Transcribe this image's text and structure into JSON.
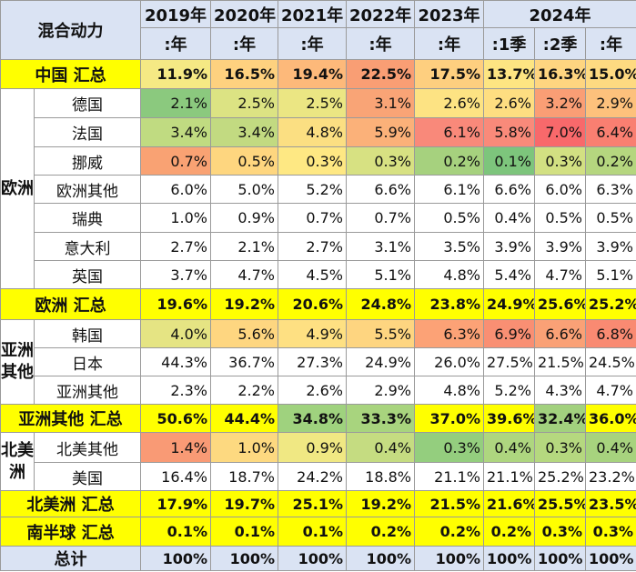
{
  "header": {
    "corner": "混合动力",
    "years": [
      {
        "label": "2019年",
        "span": 1
      },
      {
        "label": "2020年",
        "span": 1
      },
      {
        "label": "2021年",
        "span": 1
      },
      {
        "label": "2022年",
        "span": 1
      },
      {
        "label": "2023年",
        "span": 1
      },
      {
        "label": "2024年",
        "span": 3
      }
    ],
    "periods": [
      ":年",
      ":年",
      ":年",
      ":年",
      ":年",
      ":1季",
      ":2季",
      ":年"
    ]
  },
  "rows": [
    {
      "type": "total",
      "label": "中国 汇总",
      "values": [
        "11.9%",
        "16.5%",
        "19.4%",
        "22.5%",
        "17.5%",
        "13.7%",
        "16.3%",
        "15.0%"
      ],
      "colors": [
        "#f5e984",
        "#fed17f",
        "#fdb97a",
        "#f99e74",
        "#fecf7f",
        "#fde582",
        "#fed580",
        "#feda81"
      ]
    },
    {
      "type": "region-start",
      "region": "欧洲",
      "span": 7,
      "label": "德国",
      "values": [
        "2.1%",
        "2.5%",
        "2.5%",
        "3.1%",
        "2.6%",
        "2.6%",
        "3.2%",
        "2.9%"
      ],
      "colors": [
        "#8bc97e",
        "#dce383",
        "#ebe683",
        "#f9a476",
        "#fde383",
        "#fede81",
        "#fa9e75",
        "#fdc17c"
      ]
    },
    {
      "type": "country",
      "label": "法国",
      "values": [
        "3.4%",
        "3.4%",
        "4.8%",
        "5.9%",
        "6.1%",
        "5.8%",
        "7.0%",
        "6.4%"
      ],
      "colors": [
        "#c0db81",
        "#c2da81",
        "#fbdf82",
        "#fbb179",
        "#f9897a",
        "#f98a7a",
        "#f8696b",
        "#f97f71"
      ]
    },
    {
      "type": "country",
      "label": "挪威",
      "values": [
        "0.7%",
        "0.5%",
        "0.3%",
        "0.3%",
        "0.2%",
        "0.1%",
        "0.3%",
        "0.2%"
      ],
      "colors": [
        "#f9a273",
        "#fed67f",
        "#fee883",
        "#d7e182",
        "#a6d17e",
        "#7dc57c",
        "#d2e082",
        "#b5d67f"
      ]
    },
    {
      "type": "country",
      "label": "欧洲其他",
      "values": [
        "6.0%",
        "5.0%",
        "5.2%",
        "6.6%",
        "6.1%",
        "6.6%",
        "6.0%",
        "6.3%"
      ]
    },
    {
      "type": "country",
      "label": "瑞典",
      "values": [
        "1.0%",
        "0.9%",
        "0.7%",
        "0.7%",
        "0.5%",
        "0.4%",
        "0.5%",
        "0.5%"
      ]
    },
    {
      "type": "country",
      "label": "意大利",
      "values": [
        "2.7%",
        "2.1%",
        "2.7%",
        "3.1%",
        "3.5%",
        "3.9%",
        "3.9%",
        "3.9%"
      ]
    },
    {
      "type": "country",
      "label": "英国",
      "values": [
        "3.7%",
        "4.7%",
        "4.5%",
        "5.1%",
        "4.8%",
        "5.4%",
        "4.7%",
        "5.1%"
      ]
    },
    {
      "type": "total",
      "label": "欧洲 汇总",
      "values": [
        "19.6%",
        "19.2%",
        "20.6%",
        "24.8%",
        "23.8%",
        "24.9%",
        "25.6%",
        "25.2%"
      ]
    },
    {
      "type": "region-start",
      "region": "亚洲其他",
      "span": 3,
      "label": "韩国",
      "values": [
        "4.0%",
        "5.6%",
        "4.9%",
        "5.5%",
        "6.3%",
        "6.9%",
        "6.6%",
        "6.8%"
      ],
      "colors": [
        "#e5e483",
        "#fed680",
        "#fee082",
        "#fed580",
        "#fca276",
        "#f98f73",
        "#faa176",
        "#f98a72"
      ]
    },
    {
      "type": "country",
      "label": "日本",
      "values": [
        "44.3%",
        "36.7%",
        "27.3%",
        "24.9%",
        "26.0%",
        "27.5%",
        "21.5%",
        "24.5%"
      ]
    },
    {
      "type": "country",
      "label": "亚洲其他",
      "values": [
        "2.3%",
        "2.2%",
        "2.6%",
        "2.9%",
        "4.8%",
        "5.2%",
        "4.3%",
        "4.7%"
      ]
    },
    {
      "type": "total",
      "label": "亚洲其他 汇总",
      "values": [
        "50.6%",
        "44.4%",
        "34.8%",
        "33.3%",
        "37.0%",
        "39.6%",
        "32.4%",
        "36.0%"
      ],
      "colors": [
        "#ffff00",
        "#ffff00",
        "#9fd27e",
        "#a8d47e",
        "#ffff00",
        "#ffff00",
        "#a2d17e",
        "#ffff00"
      ]
    },
    {
      "type": "region-start",
      "region": "北美洲",
      "span": 2,
      "label": "北美其他",
      "values": [
        "1.4%",
        "1.0%",
        "0.9%",
        "0.4%",
        "0.3%",
        "0.4%",
        "0.3%",
        "0.4%"
      ],
      "colors": [
        "#f99a75",
        "#fdd980",
        "#f0e883",
        "#c5dc81",
        "#94ce7e",
        "#aed67f",
        "#b5d87f",
        "#a7d37e"
      ]
    },
    {
      "type": "country",
      "label": "美国",
      "values": [
        "16.4%",
        "18.7%",
        "24.2%",
        "18.8%",
        "21.1%",
        "21.1%",
        "25.2%",
        "23.2%"
      ]
    },
    {
      "type": "total",
      "label": "北美洲 汇总",
      "values": [
        "17.9%",
        "19.7%",
        "25.1%",
        "19.2%",
        "21.5%",
        "21.6%",
        "25.5%",
        "23.5%"
      ]
    },
    {
      "type": "total",
      "label": "南半球 汇总",
      "values": [
        "0.1%",
        "0.1%",
        "0.1%",
        "0.2%",
        "0.2%",
        "0.2%",
        "0.3%",
        "0.3%"
      ]
    },
    {
      "type": "grand",
      "label": "总计",
      "values": [
        "100%",
        "100%",
        "100%",
        "100%",
        "100%",
        "100%",
        "100%",
        "100%"
      ]
    }
  ]
}
